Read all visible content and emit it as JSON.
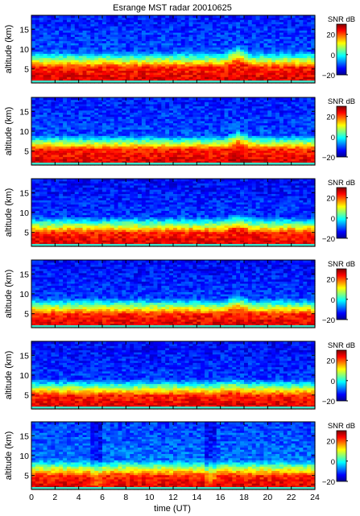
{
  "figure": {
    "title": "Esrange MST radar 20010625"
  },
  "chart_data": {
    "type": "heatmap",
    "title": "Esrange MST radar 20010625",
    "xlabel": "time (UT)",
    "ylabel": "altitude (km)",
    "xlim": [
      0,
      24
    ],
    "ylim": [
      1.5,
      18.5
    ],
    "x_ticks": [
      "0",
      "2",
      "4",
      "6",
      "8",
      "10",
      "12",
      "14",
      "16",
      "18",
      "20",
      "22",
      "24"
    ],
    "y_ticks": [
      "5",
      "10",
      "15"
    ],
    "colorbar": {
      "label": "SNR dB",
      "range": [
        -20,
        30
      ],
      "ticks": [
        "20",
        "0",
        "−20"
      ],
      "colormap": "jet"
    },
    "grid": false,
    "panels": [
      {
        "row": 1,
        "xlabel": "",
        "profile": {
          "boundary_layer_top_km": 5.5,
          "transition_top_km": 9.5,
          "snr_surface_db": 28,
          "snr_upper_db": -10
        },
        "features": [
          {
            "time_ut": 17.5,
            "extra_height_km": 1.5
          }
        ]
      },
      {
        "row": 2,
        "xlabel": "",
        "profile": {
          "boundary_layer_top_km": 5.5,
          "transition_top_km": 9.0,
          "snr_surface_db": 28,
          "snr_upper_db": -10
        },
        "features": [
          {
            "time_ut": 17.5,
            "extra_height_km": 1.5
          }
        ]
      },
      {
        "row": 3,
        "xlabel": "",
        "profile": {
          "boundary_layer_top_km": 5.0,
          "transition_top_km": 9.0,
          "snr_surface_db": 28,
          "snr_upper_db": -11
        },
        "features": [
          {
            "time_ut": 17.5,
            "extra_height_km": 1.0
          }
        ]
      },
      {
        "row": 4,
        "xlabel": "",
        "profile": {
          "boundary_layer_top_km": 5.0,
          "transition_top_km": 9.0,
          "snr_surface_db": 28,
          "snr_upper_db": -11
        },
        "features": [
          {
            "time_ut": 17.5,
            "extra_height_km": 1.0
          }
        ]
      },
      {
        "row": 5,
        "xlabel": "",
        "profile": {
          "boundary_layer_top_km": 5.0,
          "transition_top_km": 9.0,
          "snr_surface_db": 28,
          "snr_upper_db": -11
        },
        "features": [
          {
            "time_ut": 17.0,
            "extra_height_km": 0.5
          }
        ]
      },
      {
        "row": 6,
        "xlabel": "time (UT)",
        "profile": {
          "boundary_layer_top_km": 5.0,
          "transition_top_km": 9.0,
          "snr_surface_db": 28,
          "snr_upper_db": -8
        },
        "features": [
          {
            "time_ut": 5.5,
            "extra_height_km": 0.0
          },
          {
            "time_ut": 15.2,
            "extra_height_km": 0.0
          }
        ]
      }
    ]
  }
}
